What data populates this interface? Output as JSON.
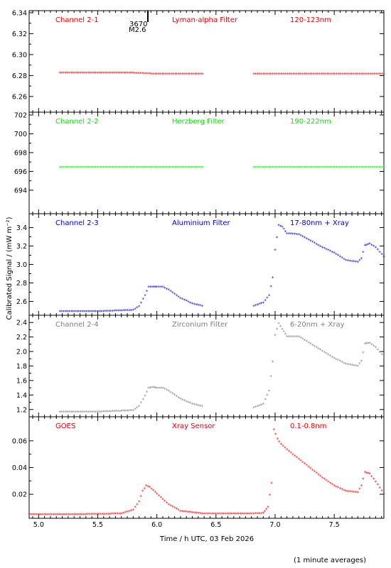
{
  "xlabel": "Time / h UTC, 03 Feb 2026",
  "ylabel": "Calibrated Signal / (mW m⁻²)",
  "footnote": "(1 minute averages)",
  "event_marker": {
    "x": 5.93,
    "labels": [
      "3670",
      "M2.6"
    ]
  },
  "colors": {
    "red": "#ee0000",
    "green": "#00ee00",
    "blue": "#0000cc",
    "gray": "#808080",
    "axis": "#000000"
  },
  "chart_data": [
    {
      "type": "scatter",
      "labels": [
        "Channel 2-1",
        "Lyman-alpha Filter",
        "120-123nm"
      ],
      "color": "#ee0000",
      "xlim": [
        4.92,
        7.92
      ],
      "ylim": [
        6.245,
        6.342
      ],
      "yticks": [
        "6.26",
        "6.28",
        "6.30",
        "6.32",
        "6.34"
      ],
      "xticks": [
        "5.0",
        "5.5",
        "6.0",
        "6.5",
        "7.0",
        "7.5"
      ],
      "x": [
        5.18,
        5.5,
        5.8,
        6.0,
        6.2,
        6.4,
        6.82,
        7.2,
        7.6,
        7.92
      ],
      "y": [
        6.282,
        6.282,
        6.282,
        6.281,
        6.281,
        6.281,
        6.281,
        6.281,
        6.281,
        6.281
      ]
    },
    {
      "type": "scatter",
      "labels": [
        "Channel 2-2",
        "Herzberg Filter",
        "190-222nm"
      ],
      "color": "#00ee00",
      "xlim": [
        4.92,
        7.92
      ],
      "ylim": [
        691.5,
        702.3
      ],
      "yticks": [
        "694",
        "696",
        "698",
        "700",
        "702"
      ],
      "xticks": [
        "5.0",
        "5.5",
        "6.0",
        "6.5",
        "7.0",
        "7.5"
      ],
      "x": [
        5.18,
        5.5,
        5.8,
        6.0,
        6.2,
        6.4,
        6.82,
        7.2,
        7.6,
        7.92
      ],
      "y": [
        696.4,
        696.4,
        696.4,
        696.4,
        696.4,
        696.4,
        696.4,
        696.4,
        696.4,
        696.4
      ]
    },
    {
      "type": "scatter",
      "labels": [
        "Channel 2-3",
        "Aluminium Filter",
        "17-80nm + Xray"
      ],
      "color": "#0000cc",
      "xlim": [
        4.92,
        7.92
      ],
      "ylim": [
        2.45,
        3.55
      ],
      "yticks": [
        "2.6",
        "2.8",
        "3.0",
        "3.2",
        "3.4"
      ],
      "xticks": [
        "5.0",
        "5.5",
        "6.0",
        "6.5",
        "7.0",
        "7.5"
      ],
      "x": [
        5.18,
        5.5,
        5.8,
        5.85,
        5.9,
        5.93,
        5.96,
        6.0,
        6.05,
        6.1,
        6.2,
        6.3,
        6.4,
        6.82,
        6.9,
        6.95,
        6.98,
        7.0,
        7.03,
        7.06,
        7.1,
        7.2,
        7.3,
        7.4,
        7.5,
        7.6,
        7.7,
        7.73,
        7.76,
        7.8,
        7.85,
        7.92
      ],
      "y": [
        2.485,
        2.485,
        2.5,
        2.54,
        2.66,
        2.75,
        2.75,
        2.75,
        2.75,
        2.72,
        2.63,
        2.57,
        2.54,
        2.545,
        2.58,
        2.66,
        2.85,
        3.15,
        3.42,
        3.4,
        3.33,
        3.32,
        3.25,
        3.18,
        3.12,
        3.04,
        3.02,
        3.06,
        3.2,
        3.22,
        3.18,
        3.08
      ]
    },
    {
      "type": "scatter",
      "labels": [
        "Channel 2-4",
        "Zirconium Filter",
        "6-20nm + Xray"
      ],
      "color": "#808080",
      "xlim": [
        4.92,
        7.92
      ],
      "ylim": [
        1.1,
        2.5
      ],
      "yticks": [
        "1.2",
        "1.4",
        "1.6",
        "1.8",
        "2.0",
        "2.2",
        "2.4"
      ],
      "xticks": [
        "5.0",
        "5.5",
        "6.0",
        "6.5",
        "7.0",
        "7.5"
      ],
      "x": [
        5.18,
        5.5,
        5.8,
        5.85,
        5.9,
        5.93,
        5.96,
        6.0,
        6.05,
        6.1,
        6.2,
        6.3,
        6.4,
        6.82,
        6.9,
        6.95,
        6.98,
        7.0,
        7.03,
        7.06,
        7.1,
        7.2,
        7.3,
        7.4,
        7.5,
        7.6,
        7.7,
        7.73,
        7.76,
        7.8,
        7.85,
        7.92
      ],
      "y": [
        1.16,
        1.16,
        1.18,
        1.24,
        1.38,
        1.49,
        1.5,
        1.49,
        1.49,
        1.45,
        1.34,
        1.27,
        1.23,
        1.22,
        1.27,
        1.45,
        1.85,
        2.22,
        2.38,
        2.3,
        2.2,
        2.2,
        2.1,
        2.0,
        1.9,
        1.82,
        1.79,
        1.86,
        2.1,
        2.11,
        2.05,
        1.92
      ]
    },
    {
      "type": "scatter",
      "labels": [
        "GOES",
        "Xray Sensor",
        "0.1-0.8nm"
      ],
      "color": "#ee0000",
      "xlim": [
        4.92,
        7.92
      ],
      "ylim": [
        0.002,
        0.078
      ],
      "yticks": [
        "0.02",
        "0.04",
        "0.06"
      ],
      "xticks": [
        "5.0",
        "5.5",
        "6.0",
        "6.5",
        "7.0",
        "7.5"
      ],
      "x": [
        4.92,
        5.3,
        5.7,
        5.8,
        5.85,
        5.88,
        5.91,
        5.94,
        6.0,
        6.1,
        6.2,
        6.4,
        6.6,
        6.8,
        6.9,
        6.94,
        6.97,
        6.99,
        7.02,
        7.05,
        7.1,
        7.2,
        7.3,
        7.4,
        7.5,
        7.6,
        7.7,
        7.73,
        7.76,
        7.8,
        7.85,
        7.92
      ],
      "y": [
        0.0045,
        0.0045,
        0.005,
        0.008,
        0.014,
        0.022,
        0.026,
        0.025,
        0.02,
        0.012,
        0.007,
        0.005,
        0.005,
        0.005,
        0.0055,
        0.01,
        0.028,
        0.068,
        0.061,
        0.057,
        0.053,
        0.046,
        0.039,
        0.032,
        0.026,
        0.022,
        0.021,
        0.026,
        0.036,
        0.035,
        0.029,
        0.02
      ]
    }
  ]
}
